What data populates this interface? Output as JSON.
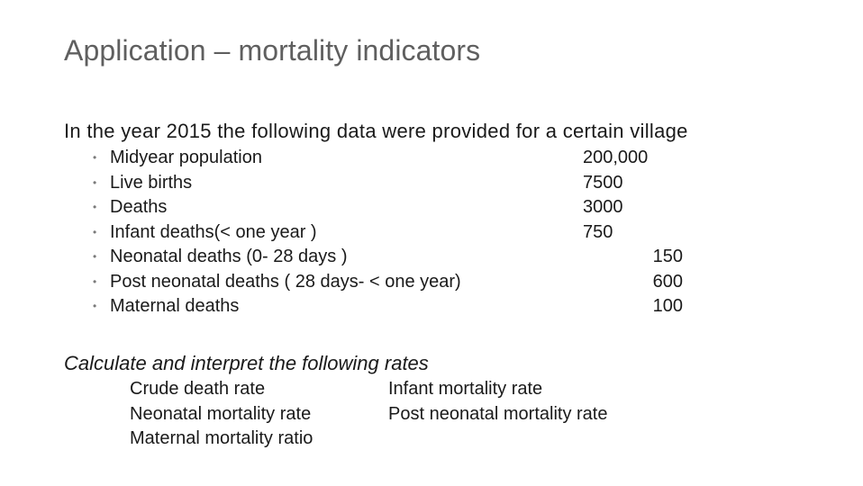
{
  "slide": {
    "title": "Application – mortality indicators",
    "intro": "In the year 2015 the following data were provided for a certain village",
    "bullet_glyph": "•",
    "items": [
      {
        "label": "Midyear population",
        "value": "200,000"
      },
      {
        "label": "Live births",
        "value": "7500"
      },
      {
        "label": "Deaths",
        "value": "3000"
      },
      {
        "label": "Infant deaths(< one year )",
        "value": "750"
      },
      {
        "label": "Neonatal deaths (0- 28 days )",
        "value": "150"
      },
      {
        "label": "Post neonatal deaths ( 28 days- < one year)",
        "value": "600"
      },
      {
        "label": "Maternal deaths",
        "value": "100"
      }
    ],
    "calc_heading": "Calculate and interpret the following rates",
    "rates_left": [
      "Crude death rate",
      "Neonatal mortality rate",
      "Maternal mortality ratio"
    ],
    "rates_right": [
      "Infant mortality rate",
      "Post neonatal mortality rate"
    ]
  }
}
